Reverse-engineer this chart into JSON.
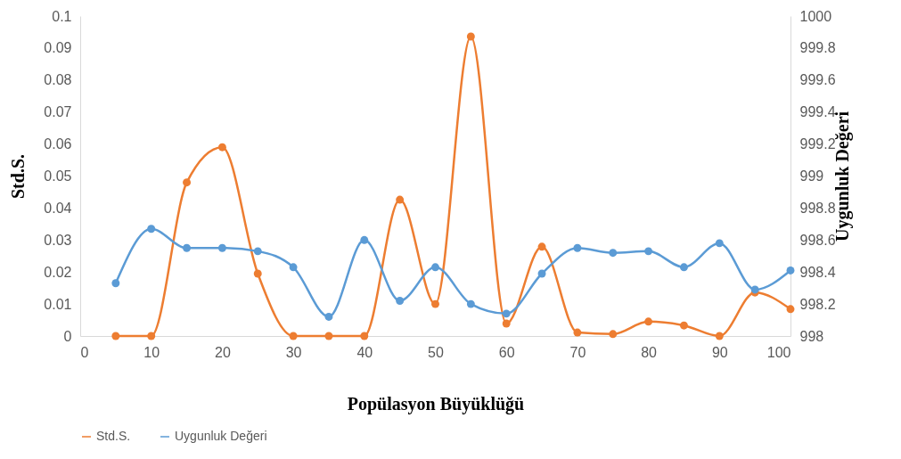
{
  "chart_data": {
    "type": "line",
    "xlabel": "Popülasyon Büyüklüğü",
    "ylabel": "Std.S.",
    "y2label": "Uygunluk Değeri",
    "x": [
      5,
      10,
      15,
      20,
      25,
      30,
      35,
      40,
      45,
      50,
      55,
      60,
      65,
      70,
      75,
      80,
      85,
      90,
      95,
      100
    ],
    "series": [
      {
        "name": "Std.S.",
        "color": "#ed7d31",
        "values": [
          0,
          0,
          0.048,
          0.059,
          0.0195,
          0,
          0,
          0,
          0.0426,
          0.01,
          0.0936,
          0.0039,
          0.0279,
          0.0011,
          0.0006,
          0.0045,
          0.0033,
          0,
          0.0136,
          0.0084
        ]
      },
      {
        "name": "Uygunluk Değeri",
        "color": "#5b9bd5",
        "axis": "y2",
        "values": [
          998.33,
          998.67,
          998.55,
          998.55,
          998.53,
          998.43,
          998.12,
          998.6,
          998.22,
          998.43,
          998.2,
          998.14,
          998.39,
          998.55,
          998.52,
          998.53,
          998.43,
          998.58,
          998.29,
          998.41
        ]
      }
    ],
    "xlim": [
      0,
      100
    ],
    "xticks": [
      0,
      10,
      20,
      30,
      40,
      50,
      60,
      70,
      80,
      90,
      100
    ],
    "ylim": [
      0,
      0.1
    ],
    "yticks": [
      0,
      0.01,
      0.02,
      0.03,
      0.04,
      0.05,
      0.06,
      0.07,
      0.08,
      0.09,
      0.1
    ],
    "y2lim": [
      998,
      1000
    ],
    "y2ticks": [
      998,
      998.2,
      998.4,
      998.6,
      998.8,
      999,
      999.2,
      999.4,
      999.6,
      999.8,
      1000
    ],
    "grid": false,
    "legend": "bottom",
    "marker": "circle",
    "line_style": "solid"
  }
}
